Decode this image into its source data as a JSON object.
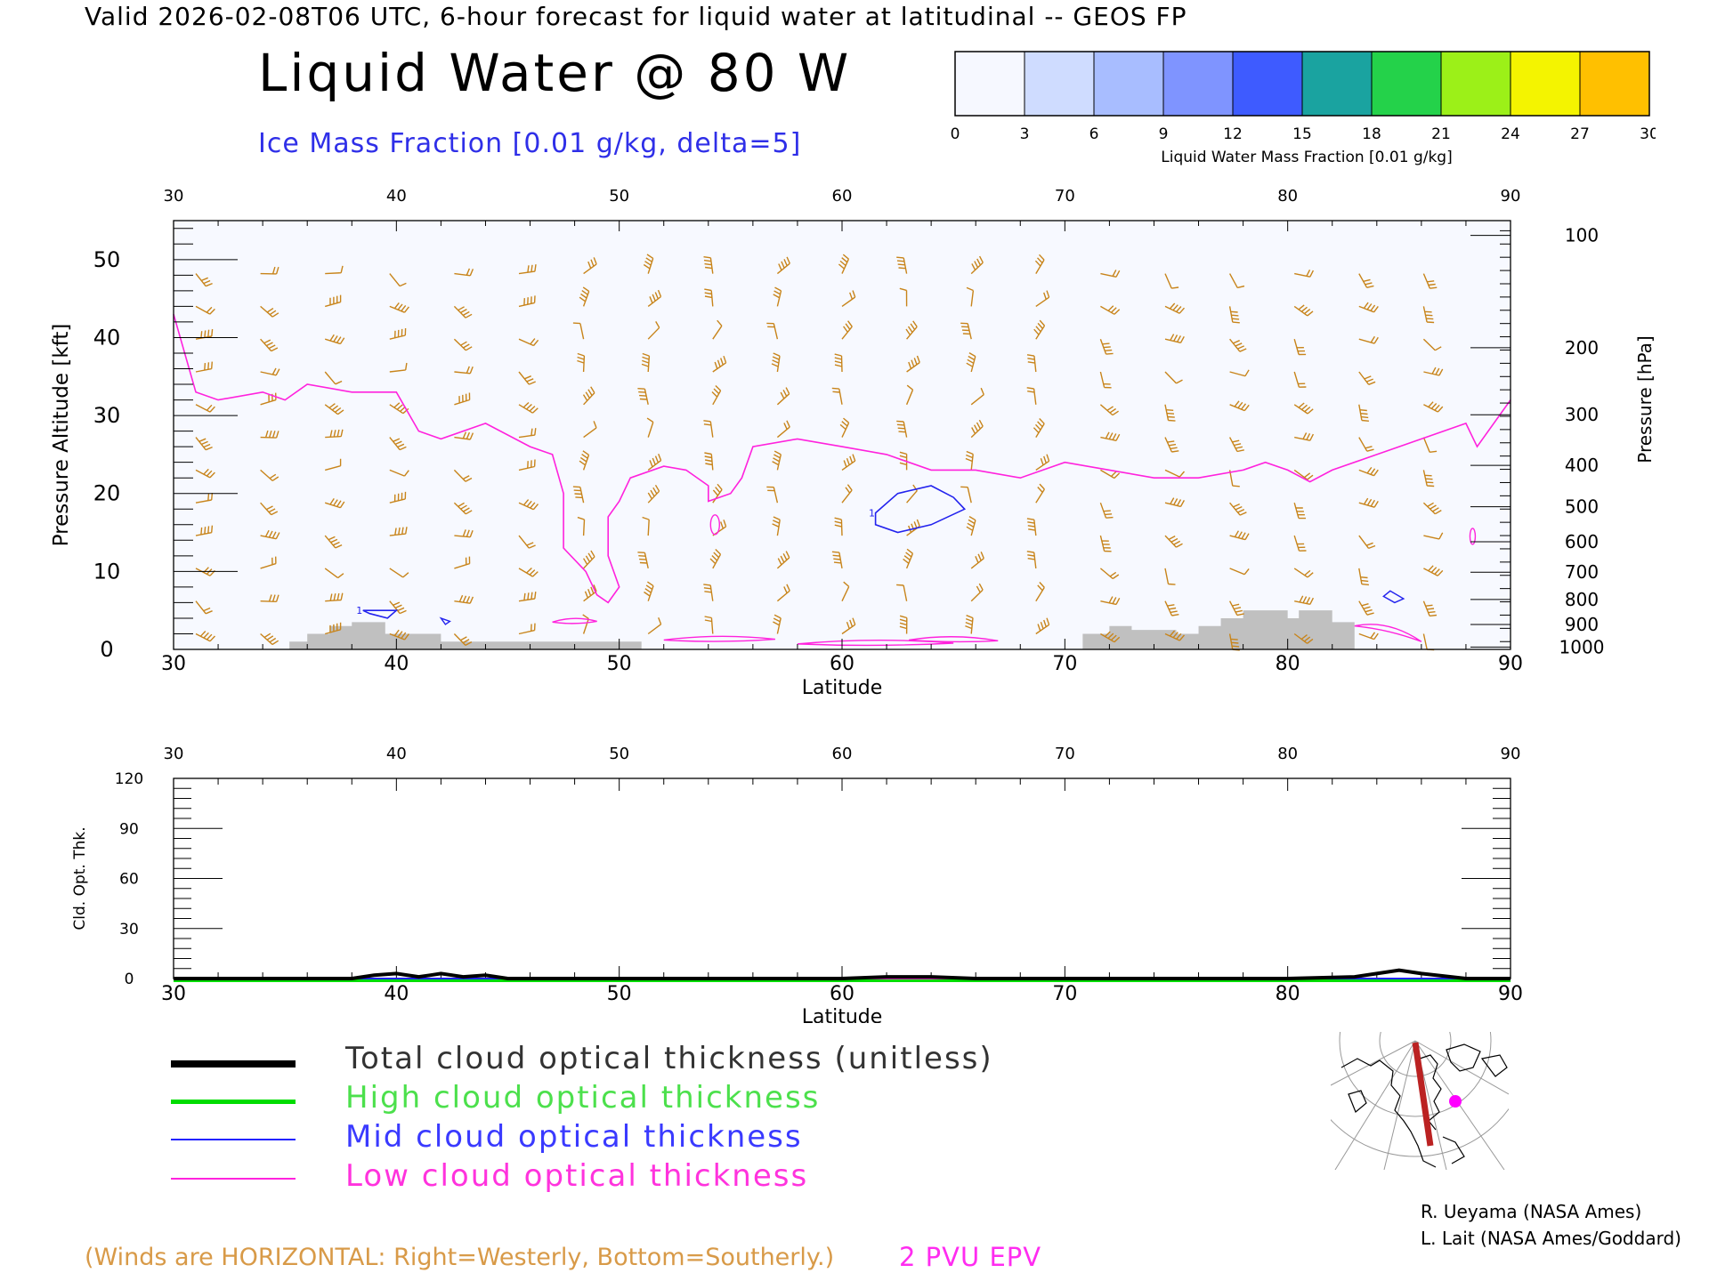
{
  "header": {
    "valid_line": "Valid 2026-02-08T06 UTC, 6-hour forecast for liquid water at latitudinal -- GEOS FP",
    "title": "Liquid Water @ 80 W",
    "ice_label": "Ice Mass Fraction [0.01 g/kg, delta=5]"
  },
  "colorbar": {
    "ticks": [
      "0",
      "3",
      "6",
      "9",
      "12",
      "15",
      "18",
      "21",
      "24",
      "27",
      "30"
    ],
    "label": "Liquid Water Mass Fraction [0.01 g/kg]",
    "colors": [
      "#f6f8ff",
      "#cfdcff",
      "#a8bdff",
      "#7f94ff",
      "#3e5bff",
      "#1aa3a0",
      "#24d24a",
      "#9cf018",
      "#f4f400",
      "#ffc000",
      "#ff8a00",
      "#ff3000"
    ]
  },
  "chart_data": [
    {
      "type": "contour",
      "xlabel": "Latitude",
      "ylabel": "Pressure Altitude [kft]",
      "ylabel_right": "Pressure [hPa]",
      "xlim": [
        30,
        90
      ],
      "ylim": [
        0,
        55
      ],
      "x_ticks": [
        "30",
        "40",
        "50",
        "60",
        "70",
        "80",
        "90"
      ],
      "y_ticks": [
        "0",
        "10",
        "20",
        "30",
        "40",
        "50"
      ],
      "pressure_ticks": [
        "100",
        "200",
        "300",
        "400",
        "500",
        "600",
        "700",
        "800",
        "900",
        "1000"
      ],
      "pressure_tick_kft": [
        53.1,
        38.7,
        30.1,
        23.6,
        18.3,
        13.8,
        9.9,
        6.4,
        3.2,
        0.3
      ],
      "epv_2pvu_line": [
        [
          30,
          43
        ],
        [
          31,
          33
        ],
        [
          32,
          32
        ],
        [
          34,
          33
        ],
        [
          35,
          32
        ],
        [
          36,
          34
        ],
        [
          38,
          33
        ],
        [
          40,
          33
        ],
        [
          41,
          28
        ],
        [
          42,
          27
        ],
        [
          43,
          28
        ],
        [
          44,
          29
        ],
        [
          46,
          26
        ],
        [
          47,
          25
        ],
        [
          47.5,
          20
        ],
        [
          47.5,
          13
        ],
        [
          48.5,
          10
        ],
        [
          49,
          7
        ],
        [
          49.5,
          6
        ],
        [
          50,
          8
        ],
        [
          49.5,
          12
        ],
        [
          49.5,
          17
        ],
        [
          50,
          19
        ],
        [
          50.5,
          22
        ],
        [
          52,
          23.5
        ],
        [
          53,
          23
        ],
        [
          54,
          21
        ],
        [
          54,
          19
        ],
        [
          55,
          20
        ],
        [
          55.5,
          22
        ],
        [
          56,
          26
        ],
        [
          58,
          27
        ],
        [
          60,
          26
        ],
        [
          62,
          25
        ],
        [
          64,
          23
        ],
        [
          66,
          23
        ],
        [
          68,
          22
        ],
        [
          70,
          24
        ],
        [
          72,
          23
        ],
        [
          74,
          22
        ],
        [
          76,
          22
        ],
        [
          78,
          23
        ],
        [
          79,
          24
        ],
        [
          80,
          23
        ],
        [
          81,
          21.5
        ],
        [
          82,
          23
        ],
        [
          84,
          25
        ],
        [
          86,
          27
        ],
        [
          88,
          29
        ],
        [
          88.5,
          26
        ],
        [
          90,
          32
        ]
      ],
      "ice_contours": [
        {
          "label": "1",
          "points": [
            [
              61.5,
              17.5
            ],
            [
              62.5,
              20
            ],
            [
              64,
              21
            ],
            [
              65,
              19.5
            ],
            [
              65.5,
              18
            ],
            [
              64,
              16
            ],
            [
              62.5,
              15
            ],
            [
              61.5,
              16
            ]
          ]
        },
        {
          "label": "1",
          "points": [
            [
              38.5,
              5
            ],
            [
              40,
              5
            ],
            [
              39.6,
              4
            ],
            [
              38.8,
              4.6
            ]
          ]
        }
      ],
      "terrain": [
        [
          35.2,
          1
        ],
        [
          36,
          1
        ],
        [
          36,
          2
        ],
        [
          37,
          2
        ],
        [
          37,
          3
        ],
        [
          38,
          3
        ],
        [
          38,
          3.5
        ],
        [
          39.5,
          3.5
        ],
        [
          39.5,
          2
        ],
        [
          42,
          2
        ],
        [
          42,
          1
        ],
        [
          51,
          1
        ],
        [
          51,
          0
        ],
        [
          70.8,
          0
        ],
        [
          70.8,
          2
        ],
        [
          72,
          2
        ],
        [
          72,
          3
        ],
        [
          73,
          3
        ],
        [
          73,
          2.5
        ],
        [
          75,
          2.5
        ],
        [
          75,
          2
        ],
        [
          76,
          2
        ],
        [
          76,
          3
        ],
        [
          77,
          3
        ],
        [
          77,
          4
        ],
        [
          78,
          4
        ],
        [
          78,
          5
        ],
        [
          80,
          5
        ],
        [
          80,
          4
        ],
        [
          80.5,
          4
        ],
        [
          80.5,
          5
        ],
        [
          82,
          5
        ],
        [
          82,
          3.5
        ],
        [
          83,
          3.5
        ],
        [
          83,
          0
        ]
      ],
      "wind_barbs": {
        "lat_spacing": 2.9,
        "style": "horizontal",
        "color": "#c8841a"
      }
    },
    {
      "type": "line",
      "xlabel": "Latitude",
      "ylabel": "Cld. Opt. Thk.",
      "xlim": [
        30,
        90
      ],
      "ylim": [
        0,
        120
      ],
      "x_ticks": [
        "30",
        "40",
        "50",
        "60",
        "70",
        "80",
        "90"
      ],
      "y_ticks": [
        "0",
        "30",
        "60",
        "90",
        "120"
      ],
      "series": [
        {
          "name": "Total cloud optical thickness (unitless)",
          "color": "#000000",
          "x": [
            30,
            38,
            39,
            40,
            41,
            41.5,
            42,
            43,
            44,
            45,
            50,
            55,
            60,
            62,
            64,
            66,
            70,
            75,
            80,
            83,
            84,
            85,
            86,
            88,
            90
          ],
          "values": [
            0,
            0,
            2,
            3,
            1,
            2,
            3,
            1,
            2,
            0,
            0,
            0,
            0,
            1,
            1,
            0,
            0,
            0,
            0,
            1,
            3,
            5,
            3,
            0,
            0
          ]
        },
        {
          "name": "High cloud optical thickness",
          "color": "#00dd00",
          "x": [
            30,
            90
          ],
          "values": [
            0,
            0
          ]
        },
        {
          "name": "Mid cloud optical thickness",
          "color": "#2222ff",
          "x": [
            30,
            60,
            62,
            64,
            66,
            90
          ],
          "values": [
            0,
            0,
            1,
            1,
            0,
            0
          ]
        },
        {
          "name": "Low cloud optical thickness",
          "color": "#ff22dd",
          "x": [
            30,
            38,
            39,
            40,
            41,
            41.5,
            42,
            43,
            44,
            45,
            50,
            55,
            60,
            70,
            80,
            83,
            84,
            85,
            86,
            88,
            90
          ],
          "values": [
            0,
            0,
            2,
            3,
            1,
            2,
            3,
            1,
            2,
            0,
            0,
            0,
            0,
            0,
            0,
            1,
            3,
            5,
            3,
            0,
            0
          ]
        }
      ]
    }
  ],
  "legend": {
    "items": [
      {
        "label": "Total cloud optical thickness (unitless)",
        "color": "#000000"
      },
      {
        "label": "High cloud optical thickness",
        "color": "#00dd00"
      },
      {
        "label": "Mid cloud optical thickness",
        "color": "#2222ff"
      },
      {
        "label": "Low cloud optical thickness",
        "color": "#ff22dd"
      }
    ]
  },
  "footer": {
    "winds_note": "(Winds are HORIZONTAL: Right=Westerly, Bottom=Southerly.)",
    "pvu_note": "2 PVU EPV",
    "credit1": "R. Ueyama (NASA Ames)",
    "credit2": "L. Lait (NASA Ames/Goddard)"
  },
  "inset_map": {
    "marker_color": "#ff00ff",
    "track_color": "#bb2222"
  }
}
